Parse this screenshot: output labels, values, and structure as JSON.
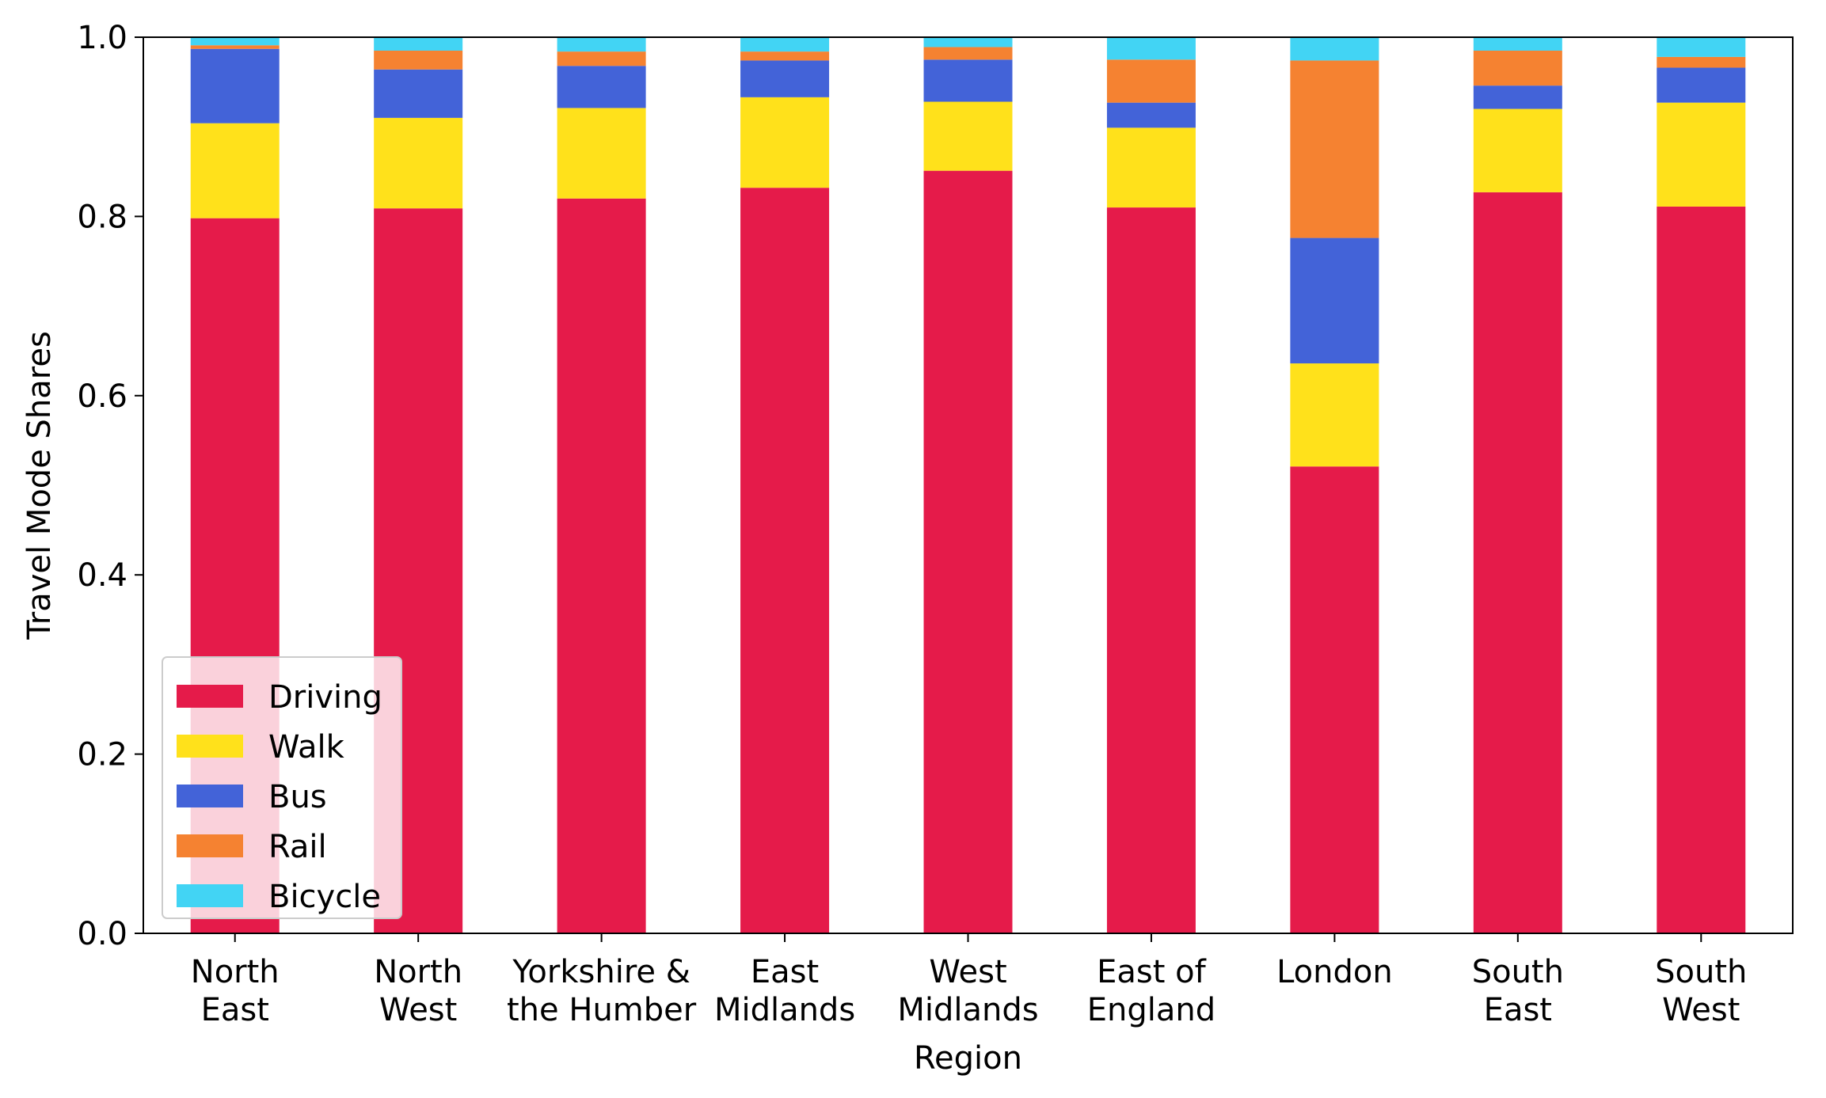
{
  "chart_data": {
    "type": "bar",
    "stacked": true,
    "title": "",
    "xlabel": "Region",
    "ylabel": "Travel Mode Shares",
    "ylim": [
      0,
      1.0
    ],
    "yticks": [
      "0.0",
      "0.2",
      "0.4",
      "0.6",
      "0.8",
      "1.0"
    ],
    "ytick_values": [
      0,
      0.2,
      0.4,
      0.6,
      0.8,
      1.0
    ],
    "grid": false,
    "legend_position": "lower-left",
    "categories": [
      [
        "North",
        "East"
      ],
      [
        "North",
        "West"
      ],
      [
        "Yorkshire &",
        "the Humber"
      ],
      [
        "East",
        "Midlands"
      ],
      [
        "West",
        "Midlands"
      ],
      [
        "East of",
        "England"
      ],
      [
        "London"
      ],
      [
        "South",
        "East"
      ],
      [
        "South",
        "West"
      ]
    ],
    "series": [
      {
        "name": "Driving",
        "color": "#e51b4a",
        "values": [
          0.798,
          0.809,
          0.82,
          0.832,
          0.851,
          0.81,
          0.521,
          0.827,
          0.811
        ]
      },
      {
        "name": "Walk",
        "color": "#ffe11b",
        "values": [
          0.106,
          0.101,
          0.101,
          0.101,
          0.077,
          0.089,
          0.115,
          0.093,
          0.116
        ]
      },
      {
        "name": "Bus",
        "color": "#4363d8",
        "values": [
          0.083,
          0.054,
          0.047,
          0.041,
          0.047,
          0.028,
          0.14,
          0.026,
          0.039
        ]
      },
      {
        "name": "Rail",
        "color": "#f58231",
        "values": [
          0.004,
          0.021,
          0.016,
          0.01,
          0.014,
          0.048,
          0.198,
          0.039,
          0.012
        ]
      },
      {
        "name": "Bicycle",
        "color": "#42d4f4",
        "values": [
          0.009,
          0.015,
          0.016,
          0.016,
          0.011,
          0.025,
          0.026,
          0.015,
          0.022
        ]
      }
    ]
  }
}
